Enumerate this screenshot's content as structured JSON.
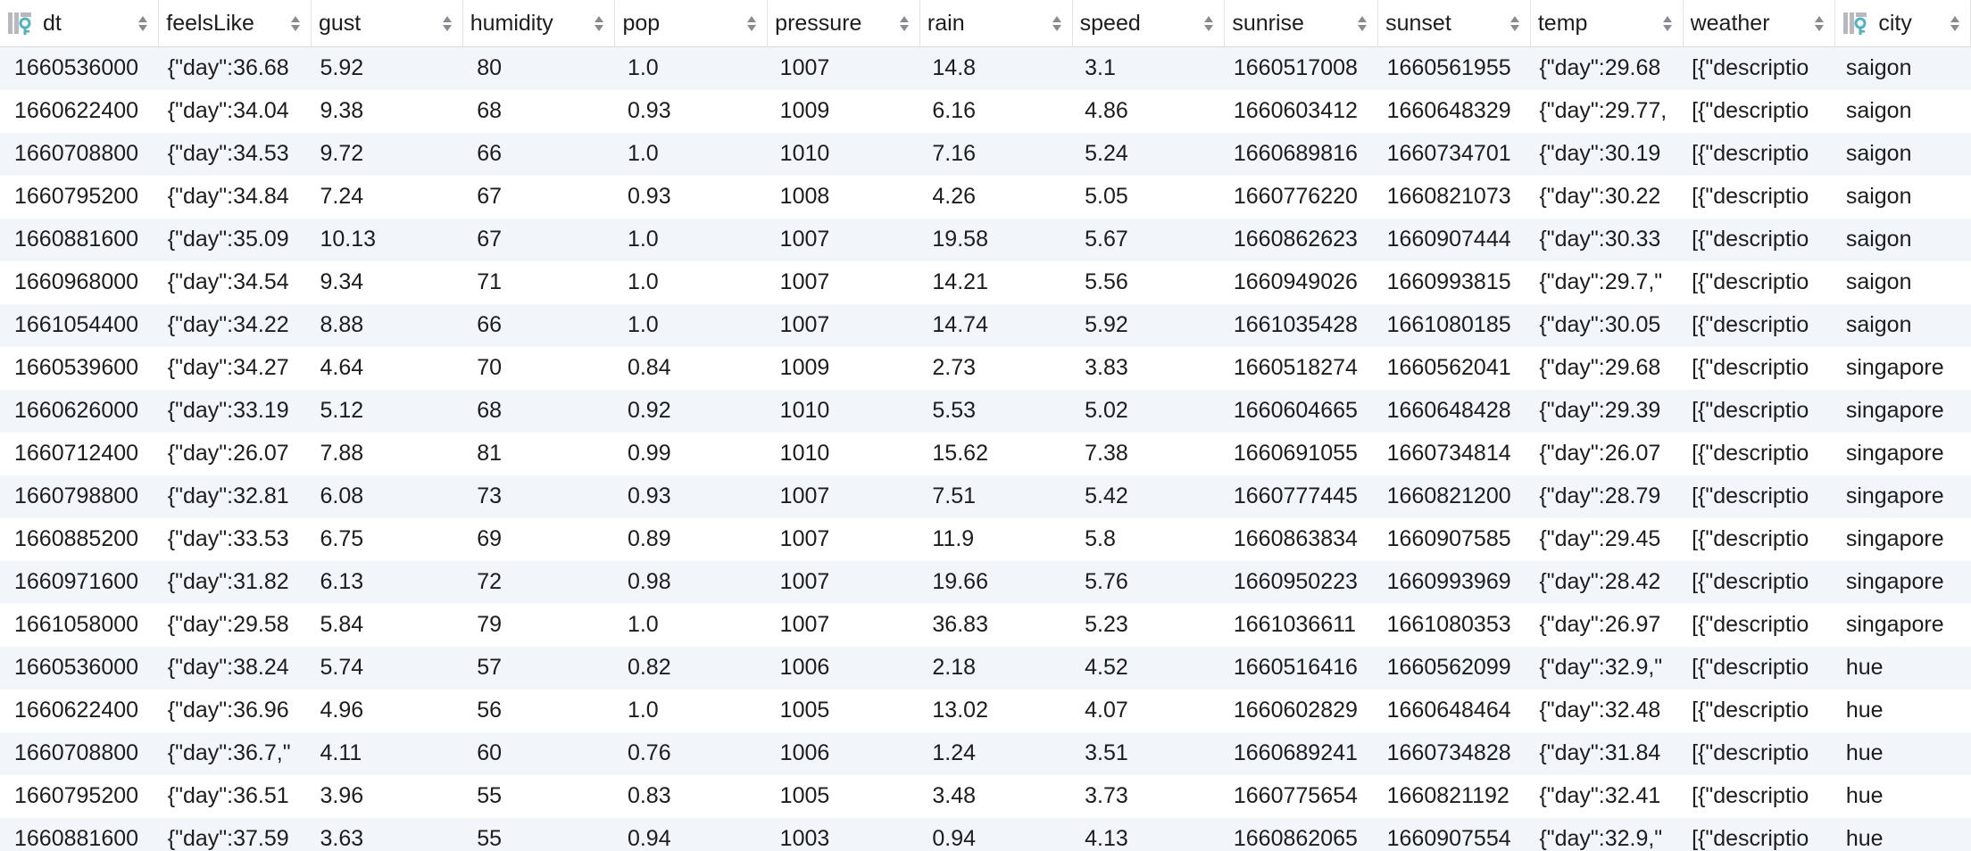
{
  "table": {
    "columns": [
      {
        "label": "dt",
        "key": true
      },
      {
        "label": "feelsLike"
      },
      {
        "label": "gust"
      },
      {
        "label": "humidity"
      },
      {
        "label": "pop"
      },
      {
        "label": "pressure"
      },
      {
        "label": "rain"
      },
      {
        "label": "speed"
      },
      {
        "label": "sunrise"
      },
      {
        "label": "sunset"
      },
      {
        "label": "temp"
      },
      {
        "label": "weather"
      },
      {
        "label": "city",
        "key": true
      }
    ],
    "rows": [
      [
        "1660536000",
        "{\"day\":36.68",
        "5.92",
        "80",
        "1.0",
        "1007",
        "14.8",
        "3.1",
        "1660517008",
        "1660561955",
        "{\"day\":29.68",
        "[{\"descriptio",
        "saigon"
      ],
      [
        "1660622400",
        "{\"day\":34.04",
        "9.38",
        "68",
        "0.93",
        "1009",
        "6.16",
        "4.86",
        "1660603412",
        "1660648329",
        "{\"day\":29.77,",
        "[{\"descriptio",
        "saigon"
      ],
      [
        "1660708800",
        "{\"day\":34.53",
        "9.72",
        "66",
        "1.0",
        "1010",
        "7.16",
        "5.24",
        "1660689816",
        "1660734701",
        "{\"day\":30.19",
        "[{\"descriptio",
        "saigon"
      ],
      [
        "1660795200",
        "{\"day\":34.84",
        "7.24",
        "67",
        "0.93",
        "1008",
        "4.26",
        "5.05",
        "1660776220",
        "1660821073",
        "{\"day\":30.22",
        "[{\"descriptio",
        "saigon"
      ],
      [
        "1660881600",
        "{\"day\":35.09",
        "10.13",
        "67",
        "1.0",
        "1007",
        "19.58",
        "5.67",
        "1660862623",
        "1660907444",
        "{\"day\":30.33",
        "[{\"descriptio",
        "saigon"
      ],
      [
        "1660968000",
        "{\"day\":34.54",
        "9.34",
        "71",
        "1.0",
        "1007",
        "14.21",
        "5.56",
        "1660949026",
        "1660993815",
        "{\"day\":29.7,\"",
        "[{\"descriptio",
        "saigon"
      ],
      [
        "1661054400",
        "{\"day\":34.22",
        "8.88",
        "66",
        "1.0",
        "1007",
        "14.74",
        "5.92",
        "1661035428",
        "1661080185",
        "{\"day\":30.05",
        "[{\"descriptio",
        "saigon"
      ],
      [
        "1660539600",
        "{\"day\":34.27",
        "4.64",
        "70",
        "0.84",
        "1009",
        "2.73",
        "3.83",
        "1660518274",
        "1660562041",
        "{\"day\":29.68",
        "[{\"descriptio",
        "singapore"
      ],
      [
        "1660626000",
        "{\"day\":33.19",
        "5.12",
        "68",
        "0.92",
        "1010",
        "5.53",
        "5.02",
        "1660604665",
        "1660648428",
        "{\"day\":29.39",
        "[{\"descriptio",
        "singapore"
      ],
      [
        "1660712400",
        "{\"day\":26.07",
        "7.88",
        "81",
        "0.99",
        "1010",
        "15.62",
        "7.38",
        "1660691055",
        "1660734814",
        "{\"day\":26.07",
        "[{\"descriptio",
        "singapore"
      ],
      [
        "1660798800",
        "{\"day\":32.81",
        "6.08",
        "73",
        "0.93",
        "1007",
        "7.51",
        "5.42",
        "1660777445",
        "1660821200",
        "{\"day\":28.79",
        "[{\"descriptio",
        "singapore"
      ],
      [
        "1660885200",
        "{\"day\":33.53",
        "6.75",
        "69",
        "0.89",
        "1007",
        "11.9",
        "5.8",
        "1660863834",
        "1660907585",
        "{\"day\":29.45",
        "[{\"descriptio",
        "singapore"
      ],
      [
        "1660971600",
        "{\"day\":31.82",
        "6.13",
        "72",
        "0.98",
        "1007",
        "19.66",
        "5.76",
        "1660950223",
        "1660993969",
        "{\"day\":28.42",
        "[{\"descriptio",
        "singapore"
      ],
      [
        "1661058000",
        "{\"day\":29.58",
        "5.84",
        "79",
        "1.0",
        "1007",
        "36.83",
        "5.23",
        "1661036611",
        "1661080353",
        "{\"day\":26.97",
        "[{\"descriptio",
        "singapore"
      ],
      [
        "1660536000",
        "{\"day\":38.24",
        "5.74",
        "57",
        "0.82",
        "1006",
        "2.18",
        "4.52",
        "1660516416",
        "1660562099",
        "{\"day\":32.9,\"",
        "[{\"descriptio",
        "hue"
      ],
      [
        "1660622400",
        "{\"day\":36.96",
        "4.96",
        "56",
        "1.0",
        "1005",
        "13.02",
        "4.07",
        "1660602829",
        "1660648464",
        "{\"day\":32.48",
        "[{\"descriptio",
        "hue"
      ],
      [
        "1660708800",
        "{\"day\":36.7,\"",
        "4.11",
        "60",
        "0.76",
        "1006",
        "1.24",
        "3.51",
        "1660689241",
        "1660734828",
        "{\"day\":31.84",
        "[{\"descriptio",
        "hue"
      ],
      [
        "1660795200",
        "{\"day\":36.51",
        "3.96",
        "55",
        "0.83",
        "1005",
        "3.48",
        "3.73",
        "1660775654",
        "1660821192",
        "{\"day\":32.41",
        "[{\"descriptio",
        "hue"
      ],
      [
        "1660881600",
        "{\"day\":37.59",
        "3.63",
        "55",
        "0.94",
        "1003",
        "0.94",
        "4.13",
        "1660862065",
        "1660907554",
        "{\"day\":32.9,\"",
        "[{\"descriptio",
        "hue"
      ]
    ]
  },
  "colors": {
    "row_stripe": "#f2f5fa",
    "key_icon": "#4bb3c6"
  }
}
